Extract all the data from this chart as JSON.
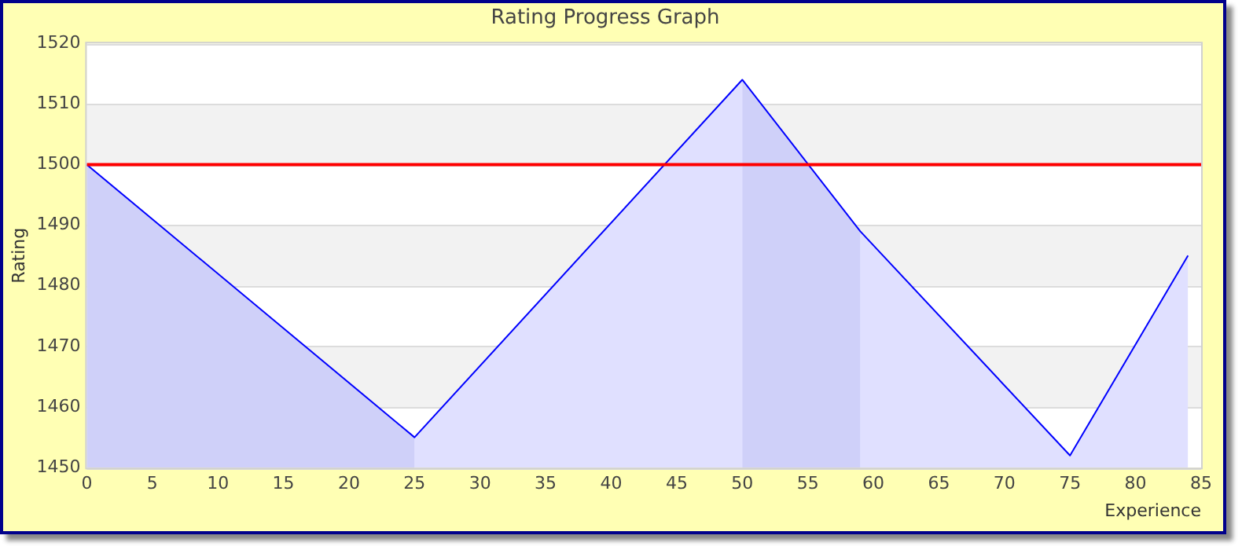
{
  "chart_data": {
    "type": "area",
    "title": "Rating Progress Graph",
    "xlabel": "Experience",
    "ylabel": "Rating",
    "x": [
      0,
      25,
      50,
      59,
      75,
      84
    ],
    "series": [
      {
        "color": "#0000ff",
        "values": [
          1500,
          1455,
          1514,
          1489,
          1452,
          1485
        ]
      },
      {
        "color": "#cfd0f9",
        "x": [
          0,
          25
        ],
        "values": [
          1500,
          1455
        ]
      },
      {
        "color": "#cfd0f9",
        "x": [
          50,
          59
        ],
        "values": [
          1514,
          1489
        ]
      }
    ],
    "xlim": [
      0,
      85
    ],
    "xticks": [
      0,
      5,
      10,
      15,
      20,
      25,
      30,
      35,
      40,
      45,
      50,
      55,
      60,
      65,
      70,
      75,
      80,
      85
    ],
    "ylim": [
      1450,
      1520
    ],
    "yticks": [
      1450,
      1460,
      1470,
      1480,
      1490,
      1500,
      1510,
      1520
    ],
    "grid": "y",
    "legend": false,
    "marker": "none",
    "line_style": "solid",
    "ref_lines": [
      {
        "axis": "y",
        "value": 1500,
        "color": "#ff0000"
      }
    ]
  }
}
